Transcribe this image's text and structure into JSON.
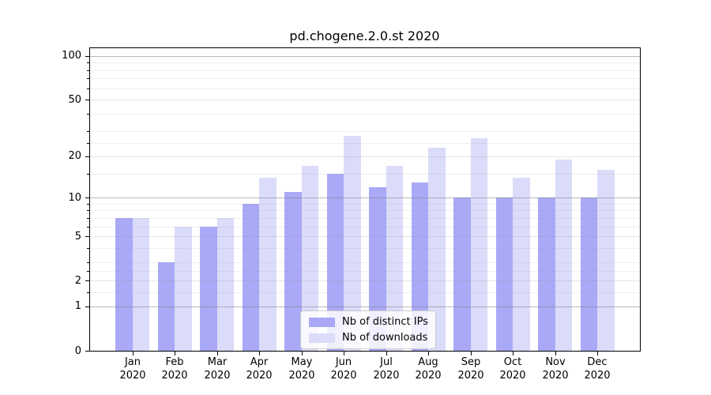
{
  "chart_data": {
    "type": "bar",
    "title": "pd.chogene.2.0.st 2020",
    "categories": [
      "Jan",
      "Feb",
      "Mar",
      "Apr",
      "May",
      "Jun",
      "Jul",
      "Aug",
      "Sep",
      "Oct",
      "Nov",
      "Dec"
    ],
    "category_year": "2020",
    "series": [
      {
        "name": "Nb of distinct IPs",
        "color": "#a9a9f7",
        "values": [
          7,
          3,
          6,
          9,
          11,
          15,
          12,
          13,
          10,
          10,
          10,
          10
        ]
      },
      {
        "name": "Nb of downloads",
        "color": "#dbdbfa",
        "values": [
          7,
          6,
          7,
          14,
          17,
          28,
          17,
          23,
          27,
          14,
          19,
          16
        ]
      }
    ],
    "xlabel": "",
    "ylabel": "",
    "yscale": "log1p",
    "ylim": [
      0,
      113
    ],
    "y_tick_values": [
      100,
      50,
      20,
      10,
      5,
      2,
      1,
      0
    ],
    "y_gridlines_decade": [
      1,
      10,
      100
    ],
    "y_gridlines_light": [
      2,
      5,
      20,
      50
    ],
    "y_gridlines_minor": [
      1.5,
      2.5,
      3,
      4,
      6,
      7,
      8,
      9,
      15,
      25,
      30,
      40,
      60,
      70,
      80,
      90
    ],
    "grid": true,
    "legend_position": "lower center"
  }
}
